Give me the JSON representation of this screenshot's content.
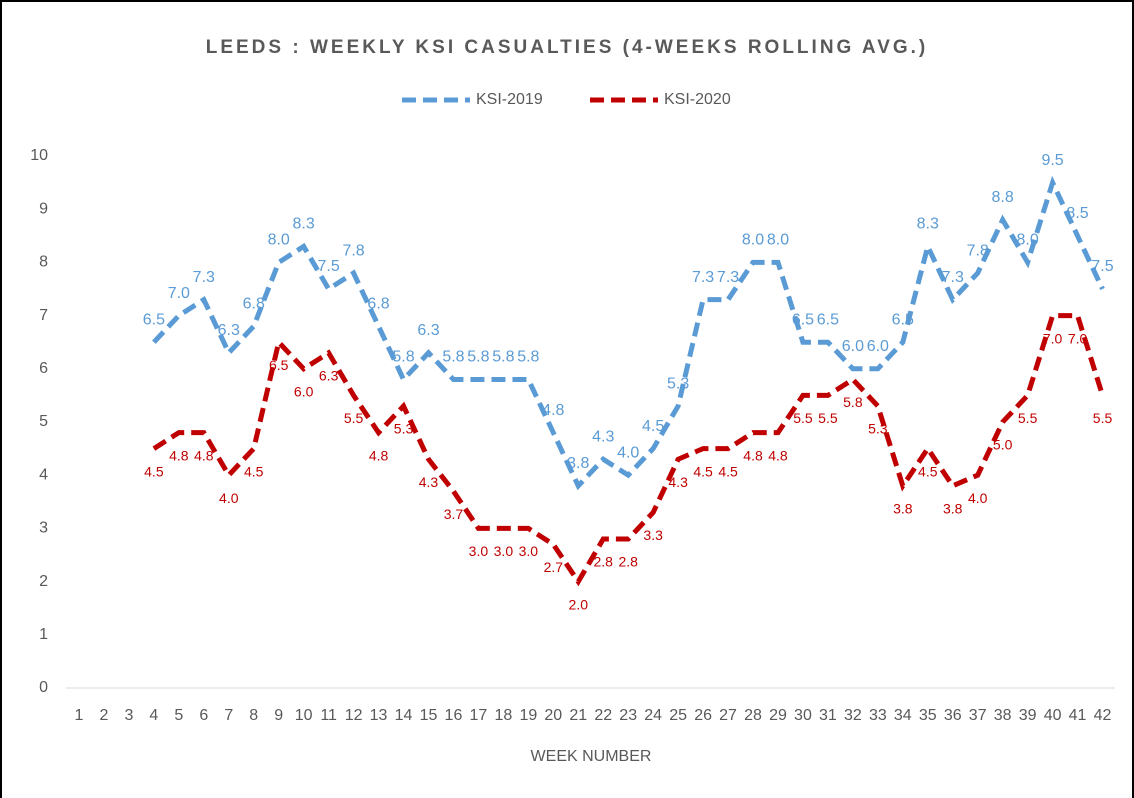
{
  "chart_data": {
    "type": "line",
    "title": "LEEDS : WEEKLY KSI CASUALTIES (4-WEEKS ROLLING AVG.)",
    "x_label": "WEEK NUMBER",
    "categories": [
      1,
      2,
      3,
      4,
      5,
      6,
      7,
      8,
      9,
      10,
      11,
      12,
      13,
      14,
      15,
      16,
      17,
      18,
      19,
      20,
      21,
      22,
      23,
      24,
      25,
      26,
      27,
      28,
      29,
      30,
      31,
      32,
      33,
      34,
      35,
      36,
      37,
      38,
      39,
      40,
      41,
      42
    ],
    "series": [
      {
        "name": "KSI-2019",
        "color": "#5b9bd5",
        "label_side": "above",
        "values": [
          null,
          null,
          null,
          6.5,
          7.0,
          7.3,
          6.3,
          6.8,
          8.0,
          8.3,
          7.5,
          7.8,
          6.8,
          5.8,
          6.3,
          5.8,
          5.8,
          5.8,
          5.8,
          4.8,
          3.8,
          4.3,
          4.0,
          4.5,
          5.3,
          7.3,
          7.3,
          8.0,
          8.0,
          6.5,
          6.5,
          6.0,
          6.0,
          6.5,
          8.3,
          7.3,
          7.8,
          8.8,
          8.0,
          9.5,
          8.5,
          7.5
        ],
        "value_labels": [
          null,
          null,
          null,
          "6.5",
          "7.0",
          "7.3",
          "6.3",
          "6.8",
          "8.0",
          "8.3",
          "7.5",
          "7.8",
          "6.8",
          "5.8",
          "6.3",
          "5.8",
          "5.8",
          "5.8",
          "5.8",
          "4.8",
          "3.8",
          "4.3",
          "4.0",
          "4.5",
          "5.3",
          "7.3",
          "7.3",
          "8.0",
          "8.0",
          "6.5",
          "6.5",
          "6.0",
          "6.0",
          "6.5",
          "8.3",
          "7.3",
          "7.8",
          "8.8",
          "8.0",
          "9.5",
          "8.5",
          "7.5"
        ]
      },
      {
        "name": "KSI-2020",
        "color": "#c00000",
        "label_side": "below",
        "values": [
          null,
          null,
          null,
          4.5,
          4.8,
          4.8,
          4.0,
          4.5,
          6.5,
          6.0,
          6.3,
          5.5,
          4.8,
          5.3,
          4.3,
          3.7,
          3.0,
          3.0,
          3.0,
          2.7,
          2.0,
          2.8,
          2.8,
          3.3,
          4.3,
          4.5,
          4.5,
          4.8,
          4.8,
          5.5,
          5.5,
          5.8,
          5.3,
          3.8,
          4.5,
          3.8,
          4.0,
          5.0,
          5.5,
          7.0,
          7.0,
          5.5
        ],
        "value_labels": [
          null,
          null,
          null,
          "4.5",
          "4.8",
          "4.8",
          "4.0",
          "4.5",
          "6.5",
          "6.0",
          "6.3",
          "5.5",
          "4.8",
          "5.3",
          "4.3",
          "3.7",
          "3.0",
          "3.0",
          "3.0",
          "2.7",
          "2.0",
          "2.8",
          "2.8",
          "3.3",
          "4.3",
          "4.5",
          "4.5",
          "4.8",
          "4.8",
          "5.5",
          "5.5",
          "5.8",
          "5.3",
          "3.8",
          "4.5",
          "3.8",
          "4.0",
          "5.0",
          "5.5",
          "7.0",
          "7.0",
          "5.5"
        ]
      }
    ],
    "ylim": [
      0,
      10
    ],
    "yticks": [
      0,
      1,
      2,
      3,
      4,
      5,
      6,
      7,
      8,
      9,
      10
    ],
    "grid": false,
    "legend": "top"
  }
}
